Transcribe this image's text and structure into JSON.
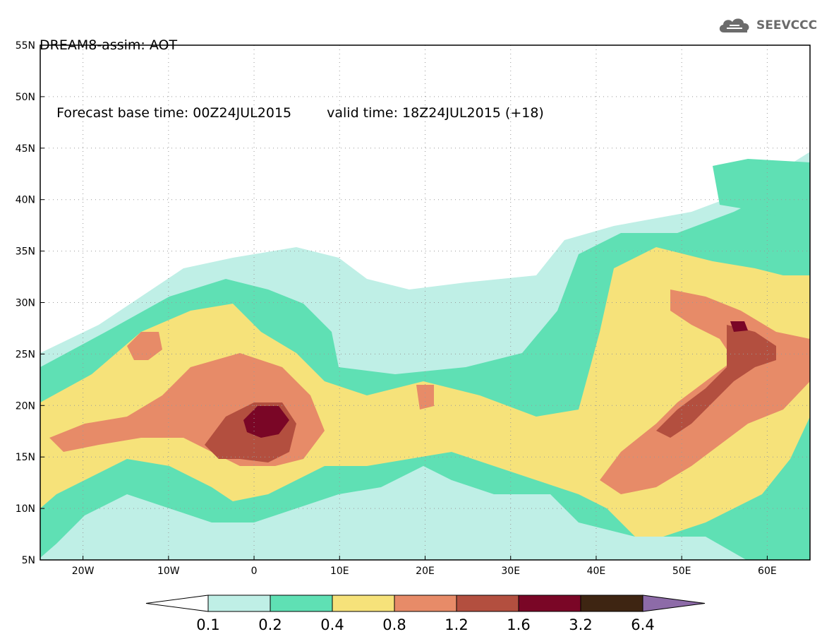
{
  "header": {
    "title": "DREAM8-assim: AOT",
    "base_time": "Forecast base time: 00Z24JUL2015",
    "valid_time": "valid time: 18Z24JUL2015 (+18)"
  },
  "logo": {
    "text": "SEEVCCC",
    "icon": "cloud-icon"
  },
  "map": {
    "lon_labels": [
      "20W",
      "10W",
      "0",
      "10E",
      "20E",
      "30E",
      "40E",
      "50E",
      "60E"
    ],
    "lat_labels": [
      "55N",
      "50N",
      "45N",
      "40N",
      "35N",
      "30N",
      "25N",
      "20N",
      "15N",
      "10N",
      "5N"
    ],
    "lon_range": [
      -25,
      65
    ],
    "lat_range": [
      5,
      55
    ],
    "grid": "dotted"
  },
  "legend": {
    "labels": [
      "0.1",
      "0.2",
      "0.4",
      "0.8",
      "1.2",
      "1.6",
      "3.2",
      "6.4"
    ],
    "colors": [
      "#ffffff",
      "#bfefe6",
      "#5fe0b4",
      "#f6e27a",
      "#e78b68",
      "#b34f3f",
      "#7a0626",
      "#3e2512",
      "#8d6ba8"
    ]
  },
  "colors": {
    "c1": "#bfefe6",
    "c2": "#5fe0b4",
    "c3": "#f6e27a",
    "c4": "#e78b68",
    "c5": "#b34f3f",
    "c6": "#7a0626",
    "c7": "#3e2512"
  }
}
